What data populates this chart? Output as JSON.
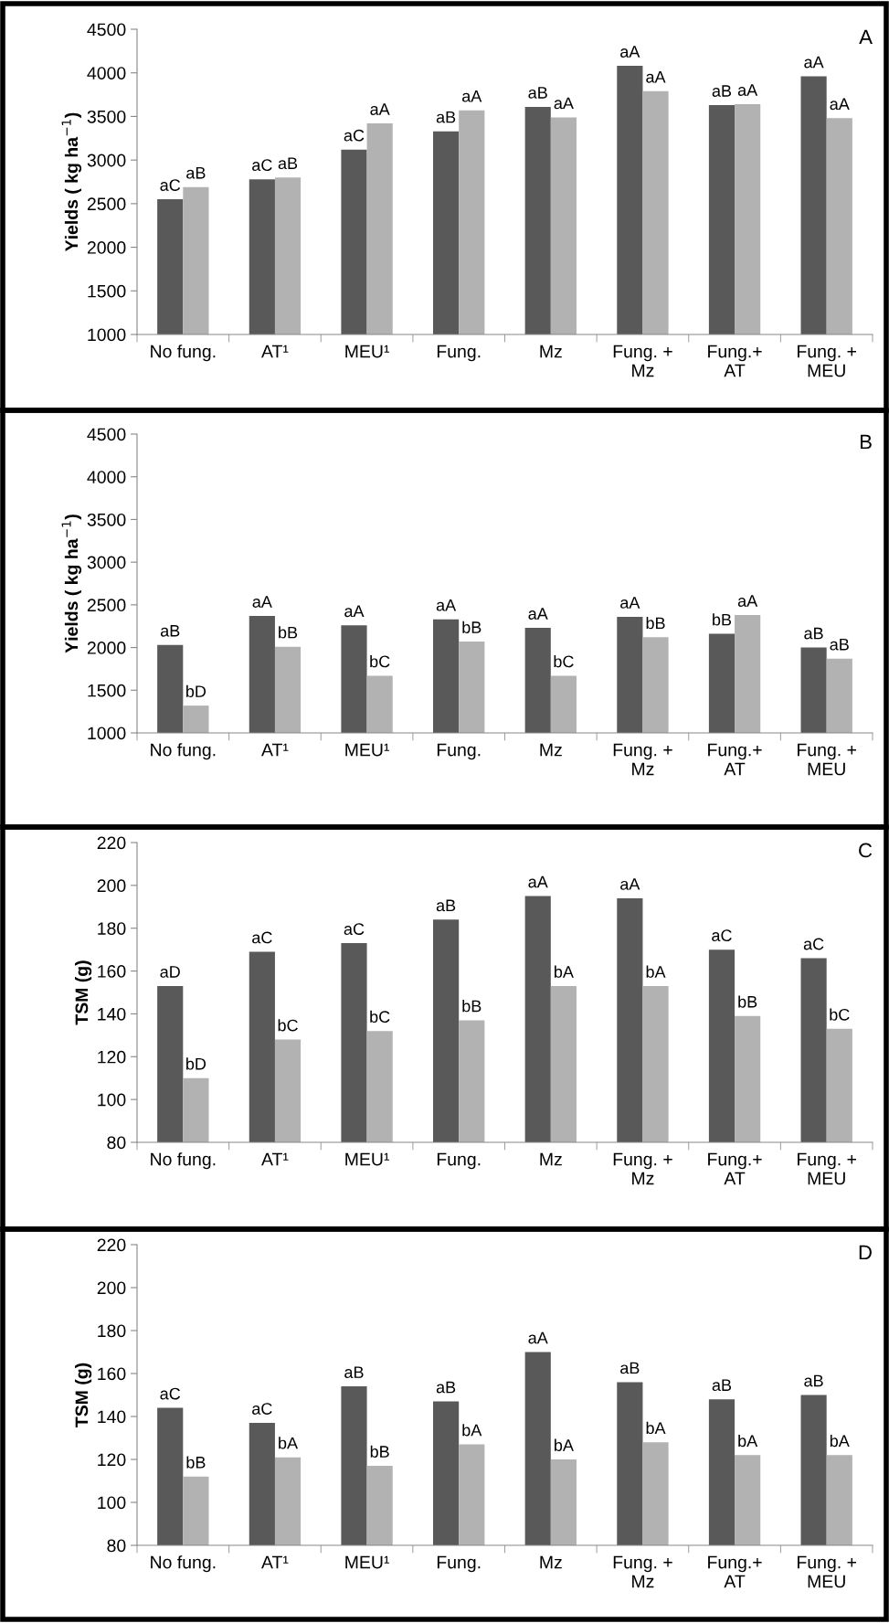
{
  "chart_data": [
    {
      "type": "bar",
      "ylabel": "Yields ( kg ha$^{−1}$)",
      "categories": [
        "No fung.",
        "AT¹",
        "MEU¹",
        "Fung.",
        "Mz",
        "Fung. +\nMz",
        "Fung.+\nAT",
        "Fung. +\nMEU"
      ],
      "ylim": [
        1000,
        4500
      ],
      "yticks": [
        1000,
        1500,
        2000,
        2500,
        3000,
        3500,
        4000,
        4500
      ],
      "annotations": [
        "A"
      ],
      "series": [
        {
          "color": "#595959",
          "values": [
            2550,
            2780,
            3120,
            3330,
            3610,
            4080,
            3630,
            3960
          ],
          "value_labels": [
            "aC",
            "aC",
            "aC",
            "aB",
            "aB",
            "aA",
            "aB",
            "aA"
          ]
        },
        {
          "color": "#b2b2b2",
          "values": [
            2690,
            2800,
            3420,
            3570,
            3490,
            3790,
            3640,
            3480
          ],
          "value_labels": [
            "aB",
            "aB",
            "aA",
            "aA",
            "aA",
            "aA",
            "aA",
            "aA"
          ]
        }
      ]
    },
    {
      "type": "bar",
      "ylabel": "Yields ( kg ha$^{−1}$)",
      "categories": [
        "No fung.",
        "AT¹",
        "MEU¹",
        "Fung.",
        "Mz",
        "Fung. +\nMz",
        "Fung.+\nAT",
        "Fung. +\nMEU"
      ],
      "ylim": [
        1000,
        4500
      ],
      "yticks": [
        1000,
        1500,
        2000,
        2500,
        3000,
        3500,
        4000,
        4500
      ],
      "annotations": [
        "B"
      ],
      "series": [
        {
          "color": "#595959",
          "values": [
            2030,
            2370,
            2260,
            2330,
            2230,
            2360,
            2160,
            2000
          ],
          "value_labels": [
            "aB",
            "aA",
            "aA",
            "aA",
            "aA",
            "aA",
            "bB",
            "aB"
          ]
        },
        {
          "color": "#b2b2b2",
          "values": [
            1320,
            2010,
            1670,
            2070,
            1670,
            2120,
            2380,
            1870
          ],
          "value_labels": [
            "bD",
            "bB",
            "bC",
            "bB",
            "bC",
            "bB",
            "aA",
            "aB"
          ]
        }
      ]
    },
    {
      "type": "bar",
      "ylabel": "TSM (g)",
      "categories": [
        "No fung.",
        "AT¹",
        "MEU¹",
        "Fung.",
        "Mz",
        "Fung. +\nMz",
        "Fung.+\nAT",
        "Fung. +\nMEU"
      ],
      "ylim": [
        80,
        220
      ],
      "yticks": [
        80,
        100,
        120,
        140,
        160,
        180,
        200,
        220
      ],
      "annotations": [
        "C"
      ],
      "series": [
        {
          "color": "#595959",
          "values": [
            153,
            169,
            173,
            184,
            195,
            194,
            170,
            166
          ],
          "value_labels": [
            "aD",
            "aC",
            "aC",
            "aB",
            "aA",
            "aA",
            "aC",
            "aC"
          ]
        },
        {
          "color": "#b2b2b2",
          "values": [
            110,
            128,
            132,
            137,
            153,
            153,
            139,
            133
          ],
          "value_labels": [
            "bD",
            "bC",
            "bC",
            "bB",
            "bA",
            "bA",
            "bB",
            "bC"
          ]
        }
      ]
    },
    {
      "type": "bar",
      "ylabel": "TSM (g)",
      "categories": [
        "No fung.",
        "AT¹",
        "MEU¹",
        "Fung.",
        "Mz",
        "Fung. +\nMz",
        "Fung.+\nAT",
        "Fung. +\nMEU"
      ],
      "ylim": [
        80,
        220
      ],
      "yticks": [
        80,
        100,
        120,
        140,
        160,
        180,
        200,
        220
      ],
      "annotations": [
        "D"
      ],
      "series": [
        {
          "color": "#595959",
          "values": [
            144,
            137,
            154,
            147,
            170,
            156,
            148,
            150
          ],
          "value_labels": [
            "aC",
            "aC",
            "aB",
            "aB",
            "aA",
            "aB",
            "aB",
            "aB"
          ]
        },
        {
          "color": "#b2b2b2",
          "values": [
            112,
            121,
            117,
            127,
            120,
            128,
            122,
            122
          ],
          "value_labels": [
            "bB",
            "bA",
            "bB",
            "bA",
            "bA",
            "bA",
            "bA",
            "bA"
          ]
        }
      ]
    }
  ]
}
